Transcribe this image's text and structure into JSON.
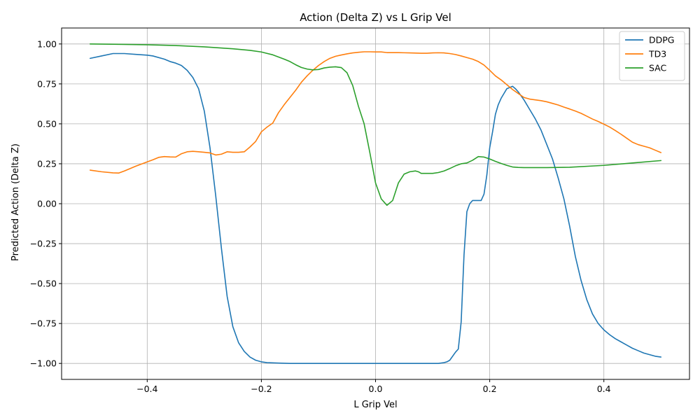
{
  "chart_data": {
    "type": "line",
    "title": "Action (Delta Z) vs L Grip Vel",
    "xlabel": "L Grip Vel",
    "ylabel": "Predicted Action (Delta Z)",
    "xlim": [
      -0.55,
      0.55
    ],
    "ylim": [
      -1.1,
      1.1
    ],
    "xticks": [
      -0.4,
      -0.2,
      0.0,
      0.2,
      0.4
    ],
    "xtick_labels": [
      "−0.4",
      "−0.2",
      "0.0",
      "0.2",
      "0.4"
    ],
    "yticks": [
      -1.0,
      -0.75,
      -0.5,
      -0.25,
      0.0,
      0.25,
      0.5,
      0.75,
      1.0
    ],
    "ytick_labels": [
      "−1.00",
      "−0.75",
      "−0.50",
      "−0.25",
      "0.00",
      "0.25",
      "0.50",
      "0.75",
      "1.00"
    ],
    "grid": true,
    "legend_position": "top-right",
    "series": [
      {
        "name": "DDPG",
        "color": "#1f77b4",
        "x": [
          -0.5,
          -0.48,
          -0.46,
          -0.45,
          -0.44,
          -0.42,
          -0.4,
          -0.39,
          -0.37,
          -0.36,
          -0.35,
          -0.34,
          -0.33,
          -0.32,
          -0.31,
          -0.3,
          -0.29,
          -0.28,
          -0.27,
          -0.26,
          -0.25,
          -0.24,
          -0.23,
          -0.22,
          -0.21,
          -0.2,
          -0.19,
          -0.17,
          -0.15,
          -0.1,
          -0.05,
          0.0,
          0.05,
          0.1,
          0.11,
          0.12,
          0.125,
          0.13,
          0.14,
          0.145,
          0.15,
          0.155,
          0.16,
          0.165,
          0.17,
          0.175,
          0.18,
          0.185,
          0.19,
          0.195,
          0.2,
          0.205,
          0.21,
          0.215,
          0.22,
          0.23,
          0.24,
          0.245,
          0.25,
          0.26,
          0.27,
          0.28,
          0.29,
          0.3,
          0.31,
          0.32,
          0.33,
          0.34,
          0.35,
          0.36,
          0.37,
          0.38,
          0.39,
          0.4,
          0.41,
          0.42,
          0.43,
          0.44,
          0.45,
          0.46,
          0.47,
          0.48,
          0.49,
          0.5
        ],
        "y": [
          0.91,
          0.925,
          0.94,
          0.94,
          0.94,
          0.935,
          0.93,
          0.925,
          0.905,
          0.89,
          0.88,
          0.865,
          0.835,
          0.79,
          0.72,
          0.58,
          0.35,
          0.05,
          -0.28,
          -0.58,
          -0.77,
          -0.87,
          -0.925,
          -0.96,
          -0.98,
          -0.99,
          -0.995,
          -0.998,
          -1.0,
          -1.0,
          -1.0,
          -1.0,
          -1.0,
          -1.0,
          -1.0,
          -0.995,
          -0.99,
          -0.98,
          -0.93,
          -0.91,
          -0.74,
          -0.32,
          -0.05,
          0.0,
          0.02,
          0.02,
          0.02,
          0.02,
          0.06,
          0.18,
          0.35,
          0.45,
          0.56,
          0.62,
          0.66,
          0.72,
          0.735,
          0.72,
          0.7,
          0.65,
          0.59,
          0.53,
          0.46,
          0.37,
          0.28,
          0.16,
          0.03,
          -0.14,
          -0.33,
          -0.48,
          -0.6,
          -0.69,
          -0.75,
          -0.79,
          -0.82,
          -0.845,
          -0.865,
          -0.885,
          -0.905,
          -0.92,
          -0.935,
          -0.945,
          -0.955,
          -0.96
        ]
      },
      {
        "name": "TD3",
        "color": "#ff7f0e",
        "x": [
          -0.5,
          -0.48,
          -0.46,
          -0.45,
          -0.44,
          -0.42,
          -0.4,
          -0.39,
          -0.38,
          -0.37,
          -0.36,
          -0.35,
          -0.34,
          -0.33,
          -0.32,
          -0.31,
          -0.3,
          -0.29,
          -0.28,
          -0.27,
          -0.26,
          -0.25,
          -0.24,
          -0.23,
          -0.22,
          -0.21,
          -0.2,
          -0.19,
          -0.18,
          -0.17,
          -0.16,
          -0.15,
          -0.14,
          -0.13,
          -0.12,
          -0.11,
          -0.1,
          -0.09,
          -0.08,
          -0.07,
          -0.06,
          -0.05,
          -0.04,
          -0.03,
          -0.02,
          -0.01,
          0.0,
          0.01,
          0.02,
          0.03,
          0.04,
          0.05,
          0.06,
          0.07,
          0.08,
          0.09,
          0.1,
          0.11,
          0.12,
          0.13,
          0.14,
          0.15,
          0.16,
          0.17,
          0.18,
          0.19,
          0.2,
          0.21,
          0.22,
          0.23,
          0.24,
          0.25,
          0.26,
          0.27,
          0.28,
          0.29,
          0.3,
          0.31,
          0.32,
          0.33,
          0.34,
          0.35,
          0.36,
          0.37,
          0.38,
          0.39,
          0.4,
          0.41,
          0.42,
          0.43,
          0.44,
          0.45,
          0.46,
          0.47,
          0.48,
          0.49,
          0.5
        ],
        "y": [
          0.21,
          0.2,
          0.193,
          0.192,
          0.205,
          0.235,
          0.262,
          0.275,
          0.29,
          0.295,
          0.293,
          0.292,
          0.313,
          0.325,
          0.328,
          0.325,
          0.322,
          0.318,
          0.305,
          0.31,
          0.325,
          0.322,
          0.322,
          0.325,
          0.355,
          0.39,
          0.45,
          0.48,
          0.505,
          0.57,
          0.62,
          0.665,
          0.71,
          0.76,
          0.8,
          0.835,
          0.865,
          0.89,
          0.91,
          0.923,
          0.931,
          0.938,
          0.944,
          0.948,
          0.951,
          0.951,
          0.95,
          0.95,
          0.946,
          0.946,
          0.946,
          0.945,
          0.944,
          0.943,
          0.942,
          0.942,
          0.944,
          0.945,
          0.944,
          0.94,
          0.934,
          0.925,
          0.915,
          0.905,
          0.89,
          0.868,
          0.835,
          0.8,
          0.775,
          0.745,
          0.715,
          0.69,
          0.665,
          0.655,
          0.65,
          0.645,
          0.638,
          0.628,
          0.618,
          0.605,
          0.593,
          0.58,
          0.566,
          0.548,
          0.53,
          0.515,
          0.498,
          0.48,
          0.458,
          0.435,
          0.41,
          0.385,
          0.37,
          0.36,
          0.35,
          0.335,
          0.32
        ]
      },
      {
        "name": "SAC",
        "color": "#2ca02c",
        "x": [
          -0.5,
          -0.45,
          -0.4,
          -0.35,
          -0.3,
          -0.25,
          -0.22,
          -0.2,
          -0.18,
          -0.16,
          -0.15,
          -0.14,
          -0.13,
          -0.12,
          -0.11,
          -0.1,
          -0.09,
          -0.08,
          -0.07,
          -0.06,
          -0.05,
          -0.04,
          -0.03,
          -0.02,
          -0.01,
          0.0,
          0.01,
          0.02,
          0.03,
          0.04,
          0.05,
          0.06,
          0.07,
          0.075,
          0.08,
          0.09,
          0.1,
          0.11,
          0.12,
          0.13,
          0.14,
          0.15,
          0.16,
          0.17,
          0.18,
          0.19,
          0.2,
          0.21,
          0.22,
          0.23,
          0.24,
          0.25,
          0.26,
          0.27,
          0.3,
          0.34,
          0.4,
          0.45,
          0.5
        ],
        "y": [
          1.0,
          0.998,
          0.995,
          0.99,
          0.982,
          0.97,
          0.96,
          0.95,
          0.932,
          0.905,
          0.89,
          0.87,
          0.853,
          0.843,
          0.838,
          0.84,
          0.85,
          0.855,
          0.857,
          0.852,
          0.82,
          0.74,
          0.61,
          0.5,
          0.32,
          0.13,
          0.03,
          -0.01,
          0.02,
          0.13,
          0.185,
          0.2,
          0.205,
          0.2,
          0.19,
          0.19,
          0.19,
          0.195,
          0.205,
          0.22,
          0.237,
          0.25,
          0.255,
          0.272,
          0.295,
          0.292,
          0.28,
          0.265,
          0.252,
          0.24,
          0.23,
          0.227,
          0.226,
          0.226,
          0.226,
          0.228,
          0.24,
          0.255,
          0.27
        ]
      }
    ]
  }
}
